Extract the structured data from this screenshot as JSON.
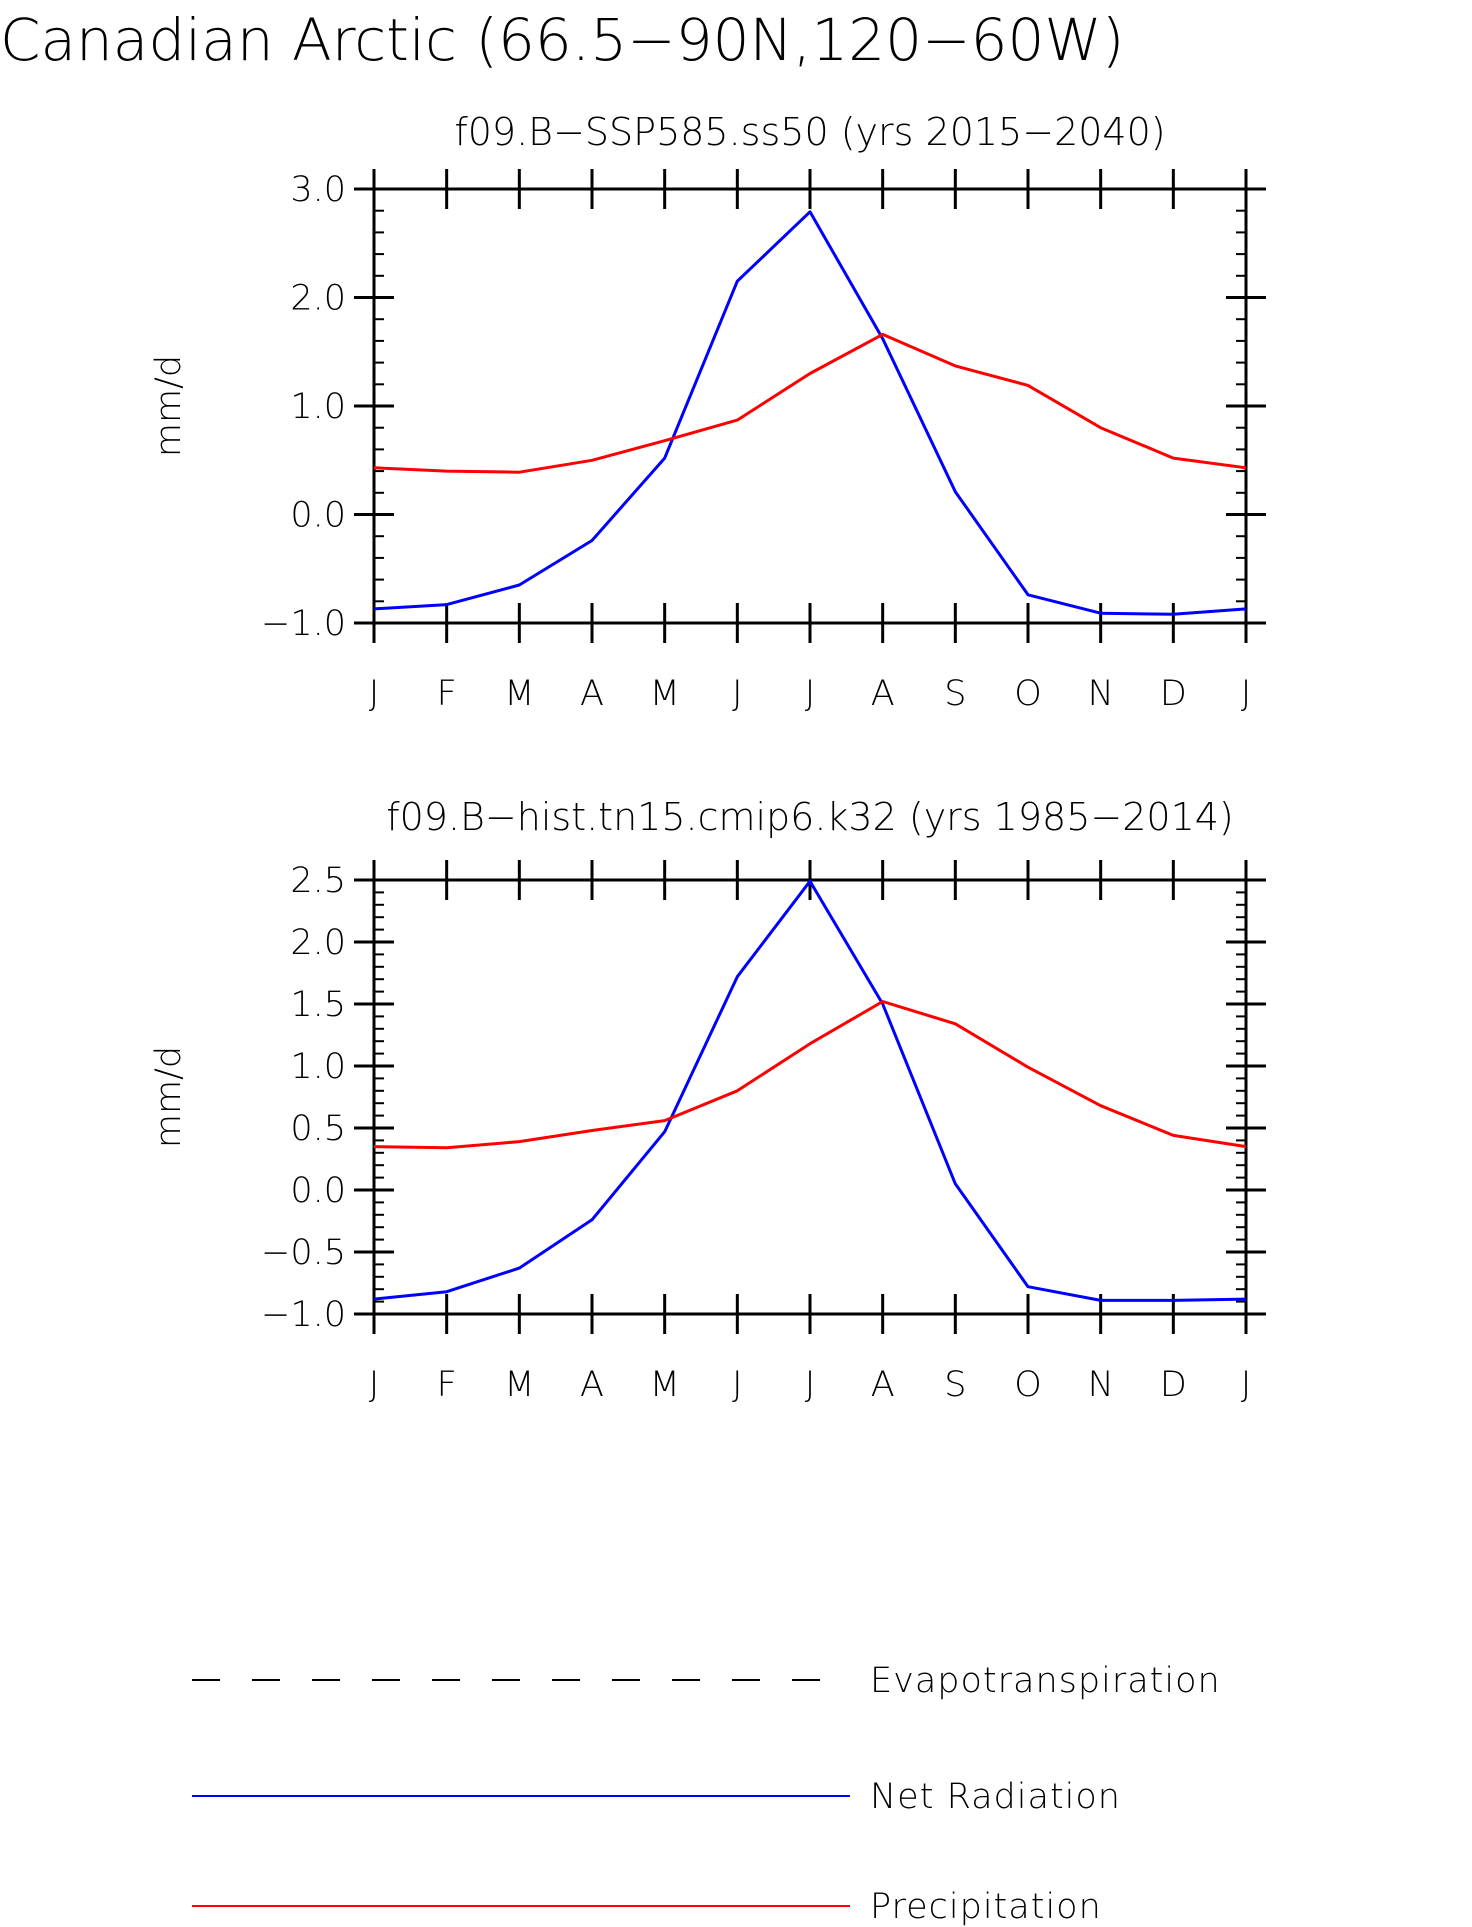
{
  "figure": {
    "title": "Canadian Arctic (66.5−90N,120−60W)"
  },
  "chart_data": [
    {
      "type": "line",
      "title": "f09.B−SSP585.ss50 (yrs 2015−2040)",
      "xlabel": "",
      "ylabel": "mm/d",
      "categories": [
        "J",
        "F",
        "M",
        "A",
        "M",
        "J",
        "J",
        "A",
        "S",
        "O",
        "N",
        "D",
        "J"
      ],
      "ylim": [
        -1.0,
        3.0
      ],
      "yticks": [
        -1.0,
        0.0,
        1.0,
        2.0,
        3.0
      ],
      "ytick_labels": [
        "−1.0",
        "0.0",
        "1.0",
        "2.0",
        "3.0"
      ],
      "y_minor_step": 0.2,
      "series": [
        {
          "name": "Net Radiation",
          "color": "#0000ff",
          "values": [
            -0.87,
            -0.83,
            -0.65,
            -0.24,
            0.52,
            2.15,
            2.79,
            1.62,
            0.21,
            -0.74,
            -0.91,
            -0.92,
            -0.87
          ]
        },
        {
          "name": "Precipitation",
          "color": "#ff0000",
          "values": [
            0.43,
            0.4,
            0.39,
            0.5,
            0.68,
            0.87,
            1.3,
            1.66,
            1.37,
            1.19,
            0.8,
            0.52,
            0.43
          ]
        }
      ]
    },
    {
      "type": "line",
      "title": "f09.B−hist.tn15.cmip6.k32 (yrs 1985−2014)",
      "xlabel": "",
      "ylabel": "mm/d",
      "categories": [
        "J",
        "F",
        "M",
        "A",
        "M",
        "J",
        "J",
        "A",
        "S",
        "O",
        "N",
        "D",
        "J"
      ],
      "ylim": [
        -1.0,
        2.5
      ],
      "yticks": [
        -1.0,
        -0.5,
        0.0,
        0.5,
        1.0,
        1.5,
        2.0,
        2.5
      ],
      "ytick_labels": [
        "−1.0",
        "−0.5",
        "0.0",
        "0.5",
        "1.0",
        "1.5",
        "2.0",
        "2.5"
      ],
      "y_minor_step": 0.1,
      "series": [
        {
          "name": "Net Radiation",
          "color": "#0000ff",
          "values": [
            -0.88,
            -0.82,
            -0.63,
            -0.24,
            0.47,
            1.72,
            2.49,
            1.5,
            0.05,
            -0.78,
            -0.89,
            -0.89,
            -0.88
          ]
        },
        {
          "name": "Precipitation",
          "color": "#ff0000",
          "values": [
            0.35,
            0.34,
            0.39,
            0.48,
            0.56,
            0.8,
            1.18,
            1.52,
            1.34,
            0.99,
            0.68,
            0.44,
            0.35
          ]
        }
      ]
    }
  ],
  "legend": [
    {
      "label": "Evapotranspiration",
      "color": "#000000",
      "style": "dashed"
    },
    {
      "label": "Net Radiation",
      "color": "#0000ff",
      "style": "solid"
    },
    {
      "label": "Precipitation",
      "color": "#ff0000",
      "style": "solid"
    }
  ]
}
